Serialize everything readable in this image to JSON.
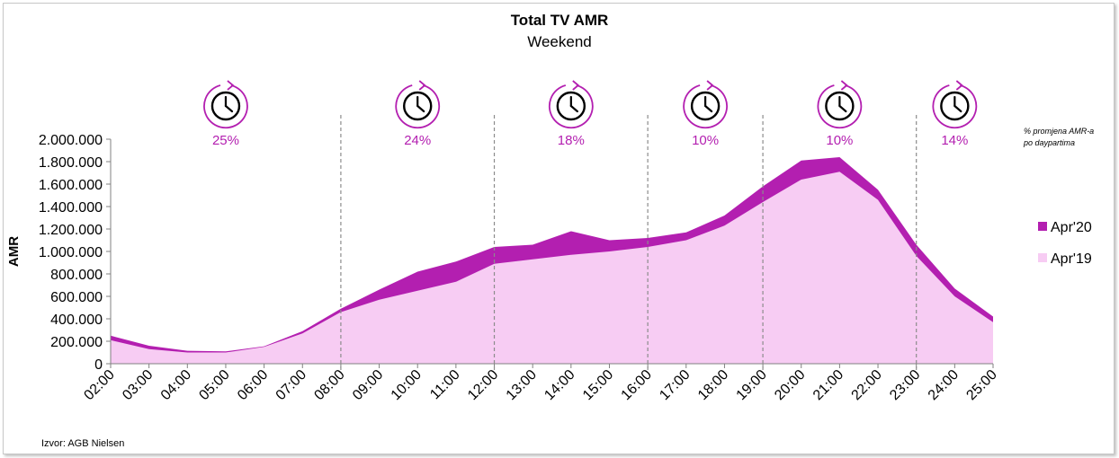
{
  "chart_data": {
    "type": "area",
    "title": "Total TV AMR",
    "subtitle": "Weekend",
    "ylabel": "AMR",
    "ylim": [
      0,
      2000000
    ],
    "yticks": [
      0,
      200000,
      400000,
      600000,
      800000,
      1000000,
      1200000,
      1400000,
      1600000,
      1800000,
      2000000
    ],
    "ytick_labels": [
      "0",
      "200.000",
      "400.000",
      "600.000",
      "800.000",
      "1.000.000",
      "1.200.000",
      "1.400.000",
      "1.600.000",
      "1.800.000",
      "2.000.000"
    ],
    "categories": [
      "02:00",
      "03:00",
      "04:00",
      "05:00",
      "06:00",
      "07:00",
      "08:00",
      "09:00",
      "10:00",
      "11:00",
      "12:00",
      "13:00",
      "14:00",
      "15:00",
      "16:00",
      "17:00",
      "18:00",
      "19:00",
      "20:00",
      "21:00",
      "22:00",
      "23:00",
      "24:00",
      "25:00"
    ],
    "series": [
      {
        "name": "Apr'20",
        "color": "#b31fb0",
        "values": [
          250000,
          160000,
          115000,
          110000,
          155000,
          290000,
          490000,
          660000,
          820000,
          910000,
          1040000,
          1060000,
          1180000,
          1100000,
          1120000,
          1170000,
          1320000,
          1580000,
          1810000,
          1840000,
          1550000,
          1060000,
          670000,
          420000
        ]
      },
      {
        "name": "Apr'19",
        "color": "#f7ccf3",
        "values": [
          210000,
          130000,
          100000,
          100000,
          150000,
          270000,
          460000,
          570000,
          650000,
          730000,
          890000,
          930000,
          970000,
          1000000,
          1040000,
          1100000,
          1230000,
          1440000,
          1640000,
          1710000,
          1460000,
          960000,
          600000,
          370000
        ]
      }
    ],
    "daypart_boundaries": [
      "08:00",
      "12:00",
      "16:00",
      "19:00",
      "23:00"
    ],
    "dayparts": [
      {
        "from": "02:00",
        "to": "08:00",
        "change_label": "25%"
      },
      {
        "from": "08:00",
        "to": "12:00",
        "change_label": "24%"
      },
      {
        "from": "12:00",
        "to": "16:00",
        "change_label": "18%"
      },
      {
        "from": "16:00",
        "to": "19:00",
        "change_label": "10%"
      },
      {
        "from": "19:00",
        "to": "23:00",
        "change_label": "10%"
      },
      {
        "from": "23:00",
        "to": "25:00",
        "change_label": "14%"
      }
    ],
    "daypart_icon": "clock-icon",
    "accent_color": "#b31fb0",
    "legend_position": "right",
    "note": [
      "% promjena AMR-a",
      "po daypartima"
    ],
    "source": "Izvor: AGB Nielsen"
  }
}
